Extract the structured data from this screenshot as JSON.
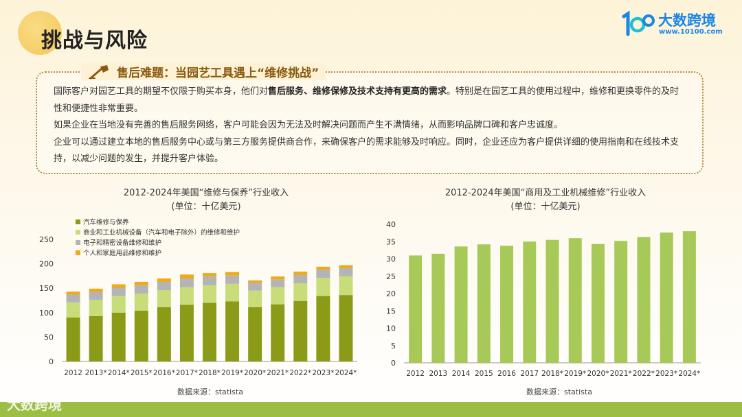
{
  "page": {
    "title": "挑战与风险"
  },
  "logo": {
    "brand": "大数跨境",
    "url": "www.10100.com",
    "mark": "10100-logo-icon"
  },
  "section": {
    "heading": "售后难题：当园艺工具遇上“维修挑战”",
    "p1_a": "国际客户对园艺工具的期望不仅限于购买本身，他们对",
    "p1_bold": "售后服务、维修保修及技术支持有更高的需求",
    "p1_b": "。特别是在园艺工具的使用过程中，维修和更换零件的及时性和便捷性非常重要。",
    "p2": "如果企业在当地没有完善的售后服务网络，客户可能会因为无法及时解决问题而产生不满情绪，从而影响品牌口碑和客户忠诚度。",
    "p3": "企业可以通过建立本地的售后服务中心或与第三方服务提供商合作，来确保客户的需求能够及时响应。同时，企业还应为客户提供详细的使用指南和在线技术支持，以减少问题的发生，并提升客户体验。"
  },
  "chart_data": [
    {
      "type": "bar",
      "stacked": true,
      "title": "2012-2024年美国“维修与保养”行业收入",
      "subtitle": "(单位：十亿美元)",
      "categories": [
        "2012",
        "2013*",
        "2014*",
        "2015*",
        "2016*",
        "2017*",
        "2018*",
        "2019*",
        "2020*",
        "2021*",
        "2022*",
        "2023*",
        "2024*"
      ],
      "series": [
        {
          "name": "汽车维修与保养",
          "color": "#8b9a17",
          "values": [
            90,
            93,
            100,
            104,
            111,
            116,
            120,
            123,
            111,
            117,
            124,
            134,
            136
          ]
        },
        {
          "name": "商业和工业机械设备（汽车和电子除外）的维修和维护",
          "color": "#c9dc7a",
          "values": [
            31,
            33,
            34,
            35,
            35,
            36,
            36,
            36,
            34,
            35,
            36,
            37,
            38
          ]
        },
        {
          "name": "电子和精密设备维修和维护",
          "color": "#b4b4b4",
          "values": [
            16,
            16,
            17,
            17,
            17,
            18,
            18,
            17,
            16,
            16,
            17,
            17,
            17
          ]
        },
        {
          "name": "个人和家庭用品维修和维护",
          "color": "#efa919",
          "values": [
            6,
            7,
            7,
            7,
            7,
            8,
            7,
            7,
            5,
            6,
            7,
            6,
            6
          ]
        }
      ],
      "yticks": [
        "250",
        "200",
        "150",
        "100",
        "50",
        "0"
      ],
      "ylim": [
        0,
        250
      ],
      "legend": "top-left",
      "source": "数据来源：statista"
    },
    {
      "type": "bar",
      "title": "2012-2024年美国“商用及工业机械维修”行业收入",
      "subtitle": "(单位：十亿美元)",
      "categories": [
        "2012",
        "2013",
        "2014",
        "2015",
        "2016",
        "2017",
        "2018*",
        "2019*",
        "2020*",
        "2021*",
        "2022*",
        "2023*",
        "2024*"
      ],
      "values": [
        31,
        31.5,
        33.6,
        34.2,
        33.8,
        35,
        35.5,
        36,
        34.3,
        35.2,
        36.3,
        37.6,
        38
      ],
      "color": "#a7c957",
      "yticks": [
        "40",
        "35",
        "30",
        "25",
        "20",
        "15",
        "10",
        "5",
        "0"
      ],
      "ylim": [
        0,
        40
      ],
      "grid": false,
      "source": "数据来源：statista"
    }
  ],
  "watermark": "大数跨境"
}
